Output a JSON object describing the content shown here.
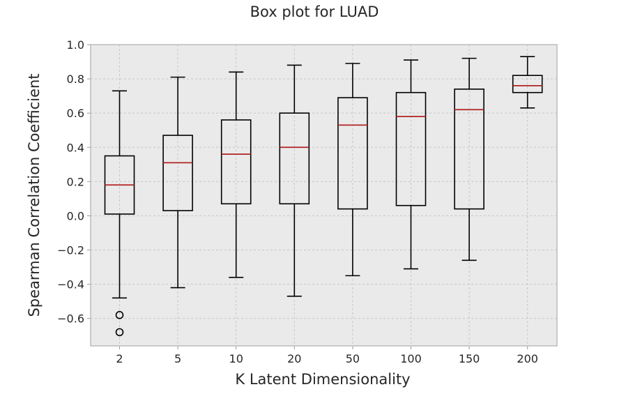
{
  "chart_data": {
    "type": "box",
    "title": "Box plot for LUAD",
    "xlabel": "K Latent Dimensionality",
    "ylabel": "Spearman Correlation Coefficient",
    "ylim": [
      -0.76,
      1.0
    ],
    "yticks": [
      1.0,
      0.8,
      0.6,
      0.4,
      0.2,
      0.0,
      -0.2,
      -0.4,
      -0.6
    ],
    "ytick_labels": [
      "1.0",
      "0.8",
      "0.6",
      "0.4",
      "0.2",
      "0.0",
      "−0.2",
      "−0.4",
      "−0.6"
    ],
    "grid": true,
    "categories": [
      "2",
      "5",
      "10",
      "20",
      "50",
      "100",
      "150",
      "200"
    ],
    "boxes": [
      {
        "whisker_low": -0.48,
        "q1": 0.01,
        "median": 0.18,
        "q3": 0.35,
        "whisker_high": 0.73,
        "fliers": [
          -0.58,
          -0.68
        ]
      },
      {
        "whisker_low": -0.42,
        "q1": 0.03,
        "median": 0.31,
        "q3": 0.47,
        "whisker_high": 0.81,
        "fliers": []
      },
      {
        "whisker_low": -0.36,
        "q1": 0.07,
        "median": 0.36,
        "q3": 0.56,
        "whisker_high": 0.84,
        "fliers": []
      },
      {
        "whisker_low": -0.47,
        "q1": 0.07,
        "median": 0.4,
        "q3": 0.6,
        "whisker_high": 0.88,
        "fliers": []
      },
      {
        "whisker_low": -0.35,
        "q1": 0.04,
        "median": 0.53,
        "q3": 0.69,
        "whisker_high": 0.89,
        "fliers": []
      },
      {
        "whisker_low": -0.31,
        "q1": 0.06,
        "median": 0.58,
        "q3": 0.72,
        "whisker_high": 0.91,
        "fliers": []
      },
      {
        "whisker_low": -0.26,
        "q1": 0.04,
        "median": 0.62,
        "q3": 0.74,
        "whisker_high": 0.92,
        "fliers": []
      },
      {
        "whisker_low": 0.63,
        "q1": 0.72,
        "median": 0.76,
        "q3": 0.82,
        "whisker_high": 0.93,
        "fliers": []
      }
    ],
    "colors": {
      "median": "#b22222",
      "box": "#000000",
      "background": "#eaeaea"
    }
  }
}
